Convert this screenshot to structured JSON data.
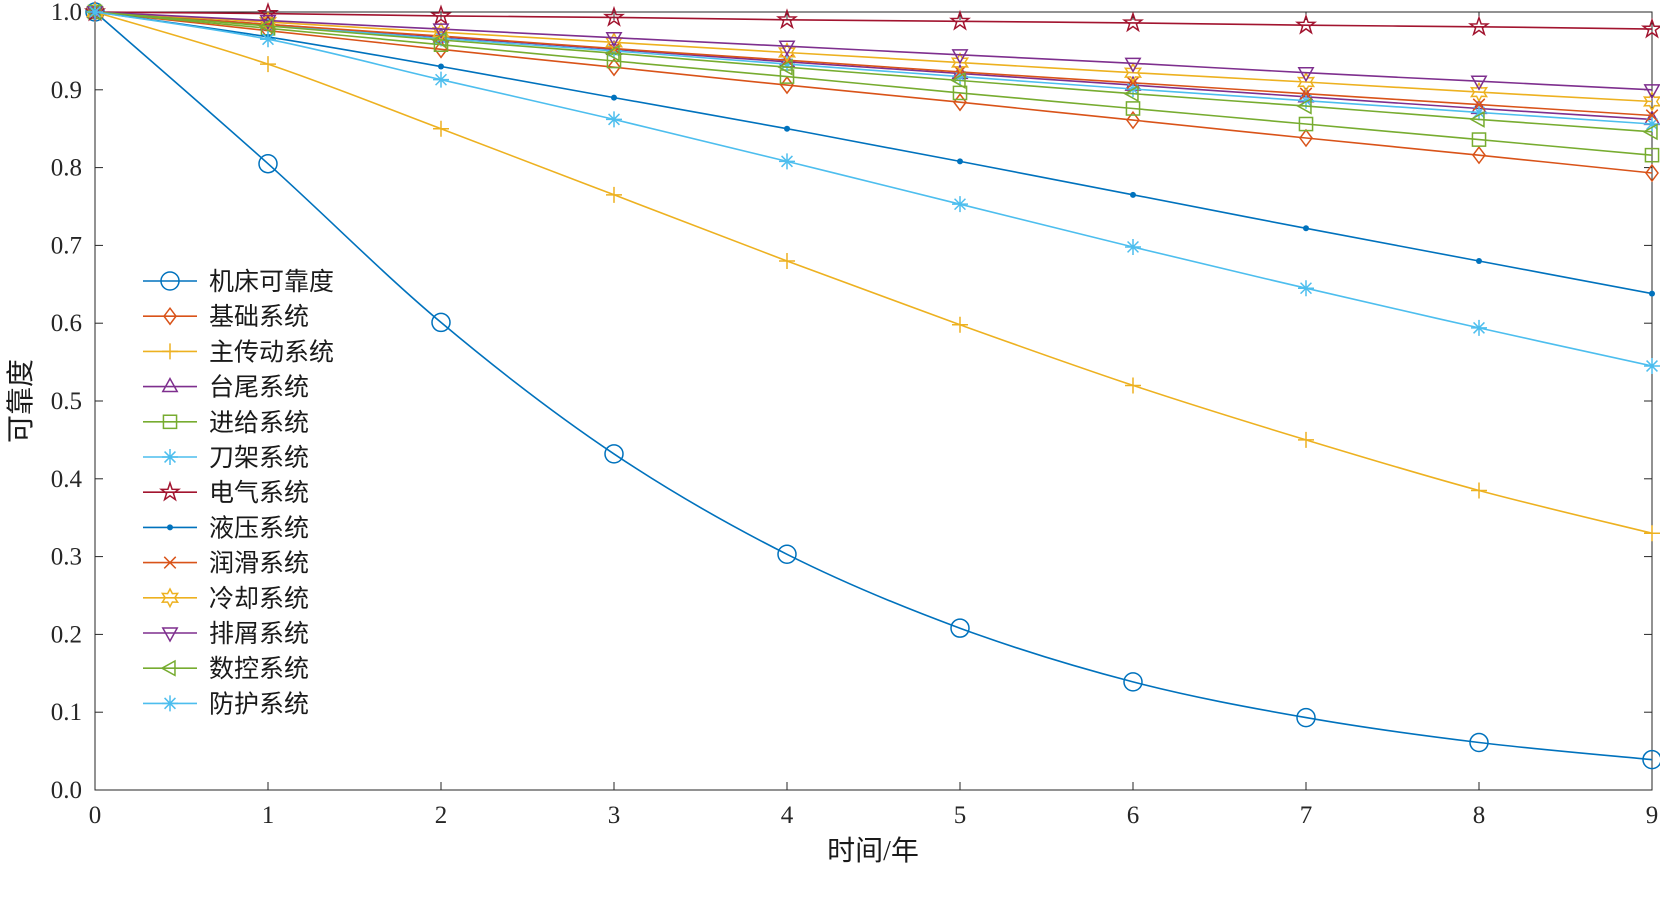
{
  "chart_data": {
    "type": "line",
    "title": "",
    "xlabel": "时间/年",
    "ylabel": "可靠度",
    "xlim": [
      0,
      9
    ],
    "ylim": [
      0.0,
      1.0
    ],
    "xticks": [
      0,
      1,
      2,
      3,
      4,
      5,
      6,
      7,
      8,
      9
    ],
    "xtick_labels": [
      "0",
      "1",
      "2",
      "3",
      "4",
      "5",
      "6",
      "7",
      "8",
      "9"
    ],
    "yticks": [
      0.0,
      0.1,
      0.2,
      0.3,
      0.4,
      0.5,
      0.6,
      0.7,
      0.8,
      0.9,
      1.0
    ],
    "ytick_labels": [
      "0.0",
      "0.1",
      "0.2",
      "0.3",
      "0.4",
      "0.5",
      "0.6",
      "0.7",
      "0.8",
      "0.9",
      "1.0"
    ],
    "grid": false,
    "legend_position": "inside-left-middle",
    "axis_color": "#262626",
    "x": [
      0,
      1,
      2,
      3,
      4,
      5,
      6,
      7,
      8,
      9
    ],
    "series": [
      {
        "name": "机床可靠度",
        "color": "#0072BD",
        "marker": "circle",
        "values": [
          1.0,
          0.805,
          0.601,
          0.432,
          0.303,
          0.208,
          0.139,
          0.093,
          0.061,
          0.039
        ]
      },
      {
        "name": "基础系统",
        "color": "#D95319",
        "marker": "diamond",
        "values": [
          1.0,
          0.976,
          0.952,
          0.929,
          0.906,
          0.884,
          0.861,
          0.838,
          0.816,
          0.793
        ]
      },
      {
        "name": "主传动系统",
        "color": "#EDB120",
        "marker": "plus",
        "values": [
          1.0,
          0.933,
          0.85,
          0.765,
          0.68,
          0.598,
          0.52,
          0.45,
          0.385,
          0.33
        ]
      },
      {
        "name": "台尾系统",
        "color": "#7E2F8E",
        "marker": "triangle-up",
        "values": [
          1.0,
          0.984,
          0.968,
          0.952,
          0.936,
          0.921,
          0.906,
          0.891,
          0.876,
          0.862
        ]
      },
      {
        "name": "进给系统",
        "color": "#77AC30",
        "marker": "square",
        "values": [
          1.0,
          0.979,
          0.958,
          0.937,
          0.917,
          0.896,
          0.876,
          0.856,
          0.836,
          0.816
        ]
      },
      {
        "name": "刀架系统",
        "color": "#4DBEEE",
        "marker": "asterisk",
        "values": [
          1.0,
          0.983,
          0.966,
          0.95,
          0.933,
          0.917,
          0.901,
          0.886,
          0.871,
          0.856
        ]
      },
      {
        "name": "电气系统",
        "color": "#A2142F",
        "marker": "pentagram",
        "values": [
          1.0,
          0.998,
          0.995,
          0.993,
          0.99,
          0.988,
          0.986,
          0.983,
          0.981,
          0.978
        ]
      },
      {
        "name": "液压系统",
        "color": "#0072BD",
        "marker": "point",
        "values": [
          1.0,
          0.968,
          0.93,
          0.89,
          0.85,
          0.808,
          0.765,
          0.722,
          0.68,
          0.638
        ]
      },
      {
        "name": "润滑系统",
        "color": "#D95319",
        "marker": "x",
        "values": [
          1.0,
          0.984,
          0.969,
          0.953,
          0.938,
          0.923,
          0.909,
          0.895,
          0.881,
          0.867
        ]
      },
      {
        "name": "冷却系统",
        "color": "#EDB120",
        "marker": "hexagram",
        "values": [
          1.0,
          0.987,
          0.974,
          0.961,
          0.948,
          0.935,
          0.922,
          0.91,
          0.897,
          0.885
        ]
      },
      {
        "name": "排屑系统",
        "color": "#7E2F8E",
        "marker": "triangle-down",
        "values": [
          1.0,
          0.989,
          0.978,
          0.967,
          0.956,
          0.945,
          0.934,
          0.922,
          0.911,
          0.9
        ]
      },
      {
        "name": "数控系统",
        "color": "#77AC30",
        "marker": "triangle-left",
        "values": [
          1.0,
          0.982,
          0.964,
          0.947,
          0.929,
          0.912,
          0.895,
          0.879,
          0.862,
          0.846
        ]
      },
      {
        "name": "防护系统",
        "color": "#4DBEEE",
        "marker": "asterisk",
        "values": [
          1.0,
          0.965,
          0.913,
          0.862,
          0.808,
          0.753,
          0.698,
          0.645,
          0.594,
          0.545
        ]
      }
    ]
  }
}
